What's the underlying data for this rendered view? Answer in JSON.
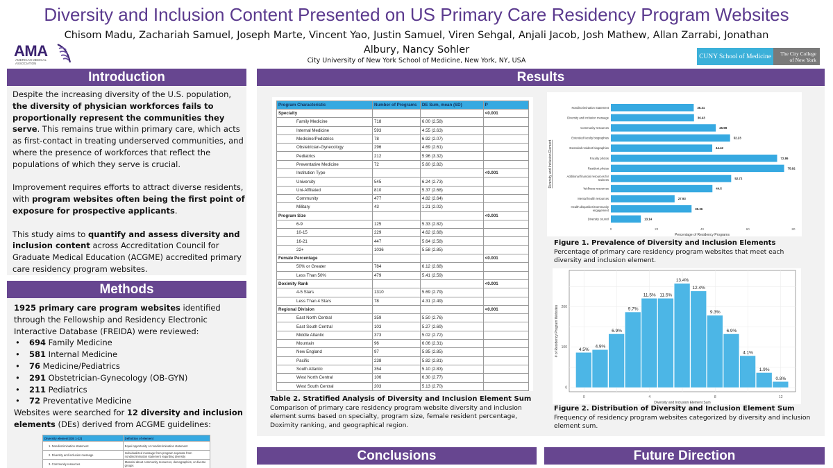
{
  "header": {
    "title": "Diversity and Inclusion Content Presented on US Primary Care Residency Program Websites",
    "authors": "Chisom Madu, Zachariah Samuel, Joseph Marte, Vincent Yao, Justin Samuel, Viren Sehgal, Anjali Jacob, Josh Mathew, Allan Zarrabi, Jonathan Albury, Nancy Sohler",
    "affiliation": "City University of New York School of Medicine, New York, NY, USA",
    "logos": {
      "ama_text": "AMA",
      "ama_sub": "AMERICAN MEDICAL ASSOCIATION",
      "cuny_left": "CUNY School of Medicine",
      "cuny_right_line1": "The City College",
      "cuny_right_line2": "of New York"
    }
  },
  "colors": {
    "accent_purple": "#674690",
    "title_purple": "#5b3a8e",
    "bar_blue": "#36a9e1",
    "panel_gray": "#f2f2f2"
  },
  "introduction": {
    "heading": "Introduction",
    "p1_a": "Despite the increasing diversity of the U.S. population, ",
    "p1_b": "the diversity of physician workforces fails to proportionally represent the communities they serve",
    "p1_c": ". This remains true within primary care, which acts as first-contact in treating underserved communities, and where the presence of workforces that reflect the populations of which they serve is crucial.",
    "p2_a": " Improvement requires efforts to attract diverse residents, with ",
    "p2_b": "program websites often being the first point of exposure for prospective applicants",
    "p2_c": ".",
    "p3_a": "This study aims to ",
    "p3_b": "quantify and assess diversity and inclusion content",
    "p3_c": " across Accreditation Council for Graduate Medical Education (ACGME) accredited primary care residency program websites."
  },
  "methods": {
    "heading": "Methods",
    "intro_bold": "1925 primary care program websites",
    "intro_rest": " identified through the Fellowship and Residency Electronic Interactive Database (FREIDA) were reviewed:",
    "bullets": [
      {
        "count": "694",
        "label": " Family Medicine"
      },
      {
        "count": "581",
        "label": " Internal Medicine"
      },
      {
        "count": "76",
        "label": " Medicine/Pediatrics"
      },
      {
        "count": "291",
        "label": " Obstetrician-Gynecology (OB-GYN)"
      },
      {
        "count": "211",
        "label": " Pediatrics"
      },
      {
        "count": "72",
        "label": " Preventative Medicine"
      }
    ],
    "search_a": "Websites were searched for ",
    "search_b": "12 diversity and inclusion elements",
    "search_c": " (DEs) derived from ACGME guidelines:",
    "de_table": {
      "headers": [
        "Diversity element (DE 1-12)",
        "Definition of element"
      ],
      "rows": [
        [
          "1.   Nondiscrimination statement",
          "Equal opportunity or nondiscrimination statement"
        ],
        [
          "2.   Diversity and inclusion message",
          "Individualized message from program separate from nondiscrimination statement regarding diversity"
        ],
        [
          "3.   Community resources",
          "Material about community resources, demographics, or diverse groups"
        ]
      ]
    }
  },
  "results": {
    "heading": "Results",
    "table2": {
      "headers": [
        "Program Characteristic",
        "Number of Programs",
        "DE Sum, mean (SD)",
        "P"
      ],
      "rows": [
        {
          "label": "Specialty",
          "n": "",
          "mean": "",
          "p": "<0.001",
          "group": true
        },
        {
          "label": "Family Medicine",
          "n": "718",
          "mean": "6.00 (2.58)",
          "p": ""
        },
        {
          "label": "Internal Medicine",
          "n": "593",
          "mean": "4.55 (2.63)",
          "p": ""
        },
        {
          "label": "Medicine/Pediatrics",
          "n": "78",
          "mean": "6.92 (2.07)",
          "p": ""
        },
        {
          "label": "Obstetrician-Gynecology",
          "n": "296",
          "mean": "4.69 (2.61)",
          "p": ""
        },
        {
          "label": "Pediatrics",
          "n": "212",
          "mean": "5.96 (3.32)",
          "p": ""
        },
        {
          "label": "Preventative Medicine",
          "n": "72",
          "mean": "5.60 (2.82)",
          "p": ""
        },
        {
          "label": "Institution Type",
          "n": "",
          "mean": "",
          "p": "<0.001",
          "subgroup": true
        },
        {
          "label": "University",
          "n": "545",
          "mean": "6.24 (2.73)",
          "p": ""
        },
        {
          "label": "Uni-Affiliated",
          "n": "810",
          "mean": "5.37 (2.68)",
          "p": ""
        },
        {
          "label": "Community",
          "n": "477",
          "mean": "4.82 (2.64)",
          "p": ""
        },
        {
          "label": "Military",
          "n": "43",
          "mean": "1.21 (2.02)",
          "p": ""
        },
        {
          "label": "Program Size",
          "n": "",
          "mean": "",
          "p": "<0.001",
          "group": true
        },
        {
          "label": "6-9",
          "n": "125",
          "mean": "5.33 (2.82)",
          "p": ""
        },
        {
          "label": "10-15",
          "n": "229",
          "mean": "4.62 (2.68)",
          "p": ""
        },
        {
          "label": "16-21",
          "n": "447",
          "mean": "5.64 (2.58)",
          "p": ""
        },
        {
          "label": "22+",
          "n": "1036",
          "mean": "5.58 (2.85)",
          "p": ""
        },
        {
          "label": "Female Percentage",
          "n": "",
          "mean": "",
          "p": "<0.001",
          "group": true
        },
        {
          "label": "50% or Greater",
          "n": "784",
          "mean": "6.12 (2.68)",
          "p": ""
        },
        {
          "label": "Less Than 50%",
          "n": "479",
          "mean": "5.41 (2.59)",
          "p": ""
        },
        {
          "label": "Doximity Rank",
          "n": "",
          "mean": "",
          "p": "<0.001",
          "group": true
        },
        {
          "label": "4-5 Stars",
          "n": "1310",
          "mean": "5.69 (2.79)",
          "p": ""
        },
        {
          "label": "Less Than 4 Stars",
          "n": "78",
          "mean": "4.31 (2.49)",
          "p": ""
        },
        {
          "label": "Regional Division",
          "n": "",
          "mean": "",
          "p": "<0.001",
          "group": true
        },
        {
          "label": "East North Central",
          "n": "359",
          "mean": "5.50 (2.76)",
          "p": ""
        },
        {
          "label": "East South Central",
          "n": "103",
          "mean": "5.27 (2.69)",
          "p": ""
        },
        {
          "label": "Middle Atlantic",
          "n": "373",
          "mean": "5.02 (2.72)",
          "p": ""
        },
        {
          "label": "Mountain",
          "n": "96",
          "mean": "6.06 (2.31)",
          "p": ""
        },
        {
          "label": "New England",
          "n": "97",
          "mean": "5.95 (2.85)",
          "p": ""
        },
        {
          "label": "Pacific",
          "n": "238",
          "mean": "5.82 (2.81)",
          "p": ""
        },
        {
          "label": "South Atlantic",
          "n": "354",
          "mean": "5.10 (2.83)",
          "p": ""
        },
        {
          "label": "West North Central",
          "n": "106",
          "mean": "6.30 (2.77)",
          "p": ""
        },
        {
          "label": "West South Central",
          "n": "203",
          "mean": "5.13 (2.70)",
          "p": ""
        }
      ],
      "caption_title": "Table 2. Stratified Analysis of Diversity and Inclusion Element Sum",
      "caption_text": "Comparison of primary care residency program website diversity and inclusion element sums based on specialty, program size, female resident percentage, Doximity ranking, and geographical region."
    },
    "figure1": {
      "caption_title": "Figure 1. Prevalence of Diversity and Inclusion Elements",
      "caption_text": "Percentage of primary care residency program websites that meet each diversity and inclusion element."
    },
    "figure2": {
      "caption_title": "Figure 2. Distribution of Diversity and Inclusion Element Sum",
      "caption_text": "Frequency of residency program websites categorized by diversity and inclusion element sum."
    }
  },
  "conclusions": {
    "heading": "Conclusions"
  },
  "future": {
    "heading": "Future Direction"
  },
  "chart_data": [
    {
      "type": "bar",
      "orientation": "horizontal",
      "title": "",
      "xlabel": "Percentage of Residency Programs",
      "ylabel": "Diversity and Inclusion Element",
      "xlim": [
        0,
        80
      ],
      "xticks": [
        0,
        20,
        40,
        60,
        80
      ],
      "grid": false,
      "categories": [
        "Nondiscrimination Statement",
        "Diversity and inclusion message",
        "Community resources",
        "Extended faculty biographies",
        "Extended resident biographies",
        "Faculty photos",
        "Resident photos",
        "Additional financial resources for trainees",
        "Wellness resources",
        "Mental health resources",
        "Health disparities/Community engagement",
        "Diversity council"
      ],
      "values": [
        36.31,
        36.43,
        45.98,
        52.23,
        44.42,
        72.86,
        75.92,
        52.72,
        44.5,
        27.93,
        35.36,
        13.14
      ],
      "data_labels": [
        "36.31",
        "36.43",
        "45.98",
        "52.23",
        "44.42",
        "72.86",
        "75.92",
        "52.72",
        "44.5",
        "27.93",
        "35.36",
        "13.14"
      ]
    },
    {
      "type": "bar",
      "orientation": "vertical",
      "title": "",
      "xlabel": "Diversity and Inclusion Element Sum",
      "ylabel": "# of Residency Program Websites",
      "x": [
        0,
        1,
        2,
        3,
        4,
        5,
        6,
        7,
        8,
        9,
        10,
        11,
        12
      ],
      "values": [
        87,
        94,
        133,
        187,
        221,
        221,
        258,
        239,
        179,
        133,
        79,
        37,
        15
      ],
      "data_labels": [
        "4.5%",
        "4.9%",
        "6.9%",
        "9.7%",
        "11.5%",
        "11.5%",
        "13.4%",
        "12.4%",
        "9.3%",
        "6.9%",
        "4.1%",
        "1.9%",
        "0.8%"
      ],
      "xticks": [
        0,
        4,
        8,
        12
      ],
      "yticks": [
        0,
        100,
        200
      ],
      "ylim": [
        0,
        290
      ],
      "grid": true
    }
  ]
}
